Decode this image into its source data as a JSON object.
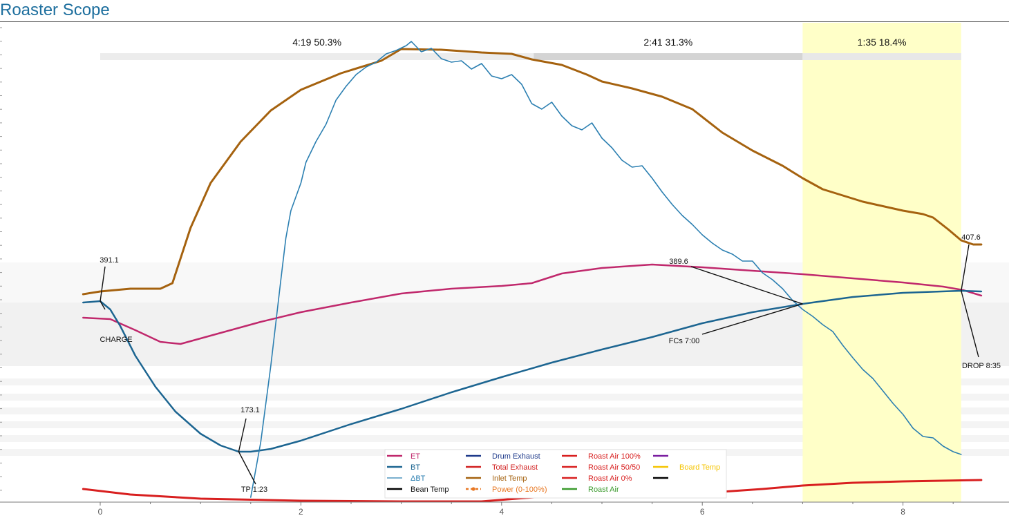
{
  "app": {
    "title": "Roaster Scope"
  },
  "chart_data": {
    "type": "line",
    "x_axis": {
      "range": [
        -0.35,
        8.8
      ],
      "ticks": [
        0,
        2,
        4,
        6,
        8
      ],
      "tick_labels": [
        "0",
        "2",
        "4",
        "6",
        "8"
      ]
    },
    "phases": [
      {
        "label": "4:19  50.3%",
        "x_start": 0,
        "x_end": 4.32
      },
      {
        "label": "2:41  31.3%",
        "x_start": 4.32,
        "x_end": 7.0
      },
      {
        "label": "1:35  18.4%",
        "x_start": 7.0,
        "x_end": 8.58,
        "highlight_color": "#ffffc8"
      }
    ],
    "series": [
      {
        "name": "Inlet Temp",
        "color": "#a5620f",
        "stroke_width": 3,
        "in_legend": true,
        "points": [
          [
            -0.17,
            426
          ],
          [
            0,
            422
          ],
          [
            0.3,
            418
          ],
          [
            0.6,
            418
          ],
          [
            0.72,
            410
          ],
          [
            0.9,
            330
          ],
          [
            1.1,
            265
          ],
          [
            1.4,
            205
          ],
          [
            1.7,
            160
          ],
          [
            2.0,
            130
          ],
          [
            2.4,
            106
          ],
          [
            2.8,
            88
          ],
          [
            3.0,
            71
          ],
          [
            3.4,
            72
          ],
          [
            3.8,
            76
          ],
          [
            4.1,
            78
          ],
          [
            4.3,
            86
          ],
          [
            4.6,
            94
          ],
          [
            4.85,
            108
          ],
          [
            5.0,
            118
          ],
          [
            5.3,
            128
          ],
          [
            5.6,
            140
          ],
          [
            5.9,
            158
          ],
          [
            6.2,
            192
          ],
          [
            6.5,
            218
          ],
          [
            6.8,
            240
          ],
          [
            7.0,
            258
          ],
          [
            7.2,
            274
          ],
          [
            7.6,
            292
          ],
          [
            8.0,
            305
          ],
          [
            8.2,
            310
          ],
          [
            8.3,
            315
          ],
          [
            8.45,
            332
          ],
          [
            8.58,
            348
          ],
          [
            8.7,
            354
          ],
          [
            8.78,
            354
          ]
        ]
      },
      {
        "name": "ET",
        "color": "#c0286c",
        "stroke_width": 2.5,
        "in_legend": true,
        "points": [
          [
            -0.17,
            460
          ],
          [
            0.1,
            462
          ],
          [
            0.35,
            478
          ],
          [
            0.6,
            495
          ],
          [
            0.8,
            498
          ],
          [
            1.2,
            482
          ],
          [
            1.6,
            466
          ],
          [
            2.0,
            452
          ],
          [
            2.5,
            438
          ],
          [
            3.0,
            425
          ],
          [
            3.5,
            418
          ],
          [
            4.0,
            414
          ],
          [
            4.3,
            410
          ],
          [
            4.6,
            396
          ],
          [
            5.0,
            388
          ],
          [
            5.5,
            383
          ],
          [
            6.0,
            387
          ],
          [
            6.5,
            392
          ],
          [
            7.0,
            397
          ],
          [
            7.5,
            403
          ],
          [
            8.0,
            409
          ],
          [
            8.4,
            415
          ],
          [
            8.6,
            420
          ],
          [
            8.78,
            428
          ]
        ]
      },
      {
        "name": "BT",
        "color": "#1c6591",
        "stroke_width": 2.5,
        "in_legend": true,
        "points": [
          [
            -0.17,
            438
          ],
          [
            0,
            436
          ],
          [
            0.1,
            448
          ],
          [
            0.2,
            472
          ],
          [
            0.35,
            515
          ],
          [
            0.55,
            560
          ],
          [
            0.75,
            596
          ],
          [
            1.0,
            628
          ],
          [
            1.2,
            645
          ],
          [
            1.38,
            654
          ],
          [
            1.5,
            654
          ],
          [
            1.7,
            650
          ],
          [
            2.0,
            638
          ],
          [
            2.5,
            614
          ],
          [
            3.0,
            592
          ],
          [
            3.5,
            568
          ],
          [
            4.0,
            546
          ],
          [
            4.5,
            525
          ],
          [
            5.0,
            506
          ],
          [
            5.5,
            488
          ],
          [
            6.0,
            468
          ],
          [
            6.5,
            452
          ],
          [
            7.0,
            440
          ],
          [
            7.5,
            430
          ],
          [
            8.0,
            424
          ],
          [
            8.58,
            421
          ],
          [
            8.78,
            422
          ]
        ]
      },
      {
        "name": "ΔBT",
        "color": "#2b7fb1",
        "stroke_width": 1.6,
        "in_legend": true,
        "points": [
          [
            1.5,
            720
          ],
          [
            1.6,
            640
          ],
          [
            1.7,
            530
          ],
          [
            1.8,
            405
          ],
          [
            1.85,
            345
          ],
          [
            1.9,
            305
          ],
          [
            2.0,
            265
          ],
          [
            2.05,
            235
          ],
          [
            2.15,
            205
          ],
          [
            2.25,
            180
          ],
          [
            2.35,
            145
          ],
          [
            2.45,
            125
          ],
          [
            2.55,
            108
          ],
          [
            2.65,
            97
          ],
          [
            2.75,
            90
          ],
          [
            2.85,
            78
          ],
          [
            2.95,
            73
          ],
          [
            3.05,
            66
          ],
          [
            3.1,
            60
          ],
          [
            3.2,
            75
          ],
          [
            3.3,
            70
          ],
          [
            3.4,
            85
          ],
          [
            3.5,
            90
          ],
          [
            3.6,
            88
          ],
          [
            3.7,
            100
          ],
          [
            3.8,
            92
          ],
          [
            3.9,
            110
          ],
          [
            4.0,
            114
          ],
          [
            4.1,
            108
          ],
          [
            4.2,
            122
          ],
          [
            4.3,
            150
          ],
          [
            4.4,
            158
          ],
          [
            4.5,
            148
          ],
          [
            4.6,
            168
          ],
          [
            4.7,
            182
          ],
          [
            4.8,
            188
          ],
          [
            4.9,
            178
          ],
          [
            5.0,
            200
          ],
          [
            5.1,
            214
          ],
          [
            5.2,
            232
          ],
          [
            5.3,
            242
          ],
          [
            5.4,
            240
          ],
          [
            5.5,
            258
          ],
          [
            5.6,
            278
          ],
          [
            5.7,
            296
          ],
          [
            5.8,
            312
          ],
          [
            5.9,
            325
          ],
          [
            6.0,
            340
          ],
          [
            6.1,
            352
          ],
          [
            6.2,
            362
          ],
          [
            6.3,
            368
          ],
          [
            6.4,
            378
          ],
          [
            6.5,
            378
          ],
          [
            6.6,
            395
          ],
          [
            6.7,
            405
          ],
          [
            6.8,
            418
          ],
          [
            6.9,
            435
          ],
          [
            7.0,
            448
          ],
          [
            7.1,
            458
          ],
          [
            7.2,
            470
          ],
          [
            7.3,
            480
          ],
          [
            7.4,
            500
          ],
          [
            7.5,
            518
          ],
          [
            7.6,
            535
          ],
          [
            7.7,
            548
          ],
          [
            7.8,
            566
          ],
          [
            7.9,
            584
          ],
          [
            8.0,
            600
          ],
          [
            8.1,
            620
          ],
          [
            8.2,
            632
          ],
          [
            8.3,
            634
          ],
          [
            8.4,
            646
          ],
          [
            8.5,
            654
          ],
          [
            8.58,
            658
          ]
        ]
      },
      {
        "name": "Bean Temp",
        "color": "#000000",
        "stroke_width": 2.5,
        "in_legend": true
      },
      {
        "name": "Drum Exhaust",
        "color": "#1e3a8a",
        "stroke_width": 2.5,
        "in_legend": true
      },
      {
        "name": "Total Exhaust",
        "color": "#d11f1f",
        "stroke_width": 2.5,
        "in_legend": true
      },
      {
        "name": "Power (0-100%)",
        "color": "#e87722",
        "stroke_width": 2,
        "in_legend": true,
        "dashed": true
      },
      {
        "name": "Roast Air 100%",
        "color": "#d81f1f",
        "stroke_width": 3,
        "in_legend": true,
        "points": [
          [
            -0.17,
            708
          ],
          [
            0.3,
            716
          ],
          [
            1.0,
            722
          ],
          [
            2.0,
            725
          ],
          [
            3.0,
            726
          ],
          [
            3.8,
            726
          ],
          [
            4.5,
            718
          ],
          [
            5.5,
            714
          ],
          [
            6.2,
            712
          ],
          [
            6.6,
            708
          ],
          [
            7.0,
            703
          ],
          [
            7.5,
            699
          ],
          [
            8.0,
            697
          ],
          [
            8.78,
            695
          ]
        ]
      },
      {
        "name": "Roast Air 50/50",
        "color": "#d81f1f",
        "stroke_width": 2.5,
        "in_legend": true
      },
      {
        "name": "Roast Air 0%",
        "color": "#d81f1f",
        "stroke_width": 2.5,
        "in_legend": true
      },
      {
        "name": "Roast Air",
        "color": "#3a9a2c",
        "stroke_width": 2.5,
        "in_legend": true
      },
      {
        "name": "Board Temp",
        "color": "#f5c400",
        "stroke_width": 2.5,
        "in_legend": true
      },
      {
        "name": "",
        "color": "#7a1ea0",
        "stroke_width": 2.5,
        "in_legend": true
      },
      {
        "name": "",
        "color": "#000000",
        "stroke_width": 2.5,
        "in_legend": true
      }
    ],
    "annotations": [
      {
        "value_label": "391.1",
        "event_label": "CHARGE",
        "x": 0.0,
        "y_point": 436
      },
      {
        "value_label": "173.1",
        "event_label": "TP 1:23",
        "x": 1.38,
        "y_point": 654
      },
      {
        "value_label": "389.6",
        "event_label": "FCs 7:00",
        "x": 7.0,
        "y_point": 440
      },
      {
        "value_label": "407.6",
        "event_label": "DROP 8:35",
        "x": 8.58,
        "y_point": 421
      }
    ],
    "legend": {
      "position": "bottom-center"
    },
    "grid": false
  }
}
